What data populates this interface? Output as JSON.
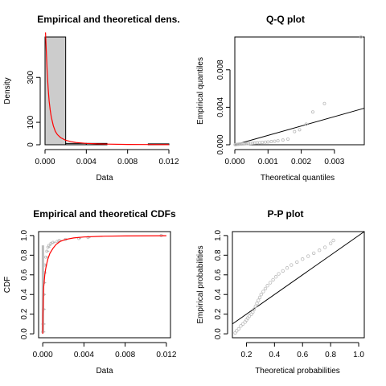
{
  "chart_data": [
    {
      "type": "histogram",
      "title": "Empirical and theoretical dens.",
      "xlabel": "Data",
      "ylabel": "Density",
      "xlim": [
        0,
        0.012
      ],
      "ylim": [
        0,
        480
      ],
      "x_ticks": [
        0.0,
        0.004,
        0.008,
        0.012
      ],
      "x_tick_labels": [
        "0.000",
        "0.004",
        "0.008",
        "0.012"
      ],
      "y_ticks": [
        0,
        100,
        300
      ],
      "y_tick_labels": [
        "0",
        "100",
        "300"
      ],
      "bins": [
        {
          "x0": 0.0,
          "x1": 0.002,
          "density": 480
        },
        {
          "x0": 0.002,
          "x1": 0.004,
          "density": 6
        },
        {
          "x0": 0.004,
          "x1": 0.006,
          "density": 6
        },
        {
          "x0": 0.006,
          "x1": 0.008,
          "density": 0
        },
        {
          "x0": 0.008,
          "x1": 0.01,
          "density": 0
        },
        {
          "x0": 0.01,
          "x1": 0.012,
          "density": 4
        }
      ],
      "theoretical_density_curve": {
        "color": "#ff0000",
        "x": [
          5e-05,
          0.0001,
          0.0002,
          0.0003,
          0.0004,
          0.0005,
          0.0006,
          0.0008,
          0.001,
          0.0012,
          0.0015,
          0.002,
          0.0025,
          0.003,
          0.004,
          0.005,
          0.006,
          0.008,
          0.01,
          0.012
        ],
        "y": [
          500,
          440,
          330,
          250,
          195,
          155,
          125,
          85,
          60,
          45,
          32,
          20,
          14,
          10,
          6,
          4,
          3,
          1.5,
          1,
          0.5
        ]
      },
      "bar_color": "#cccccc"
    },
    {
      "type": "scatter",
      "title": "Q-Q plot",
      "xlabel": "Theoretical quantiles",
      "ylabel": "Empirical quantiles",
      "xlim": [
        0,
        0.0039
      ],
      "ylim": [
        0,
        0.0115
      ],
      "x_ticks": [
        0.0,
        0.001,
        0.002,
        0.003
      ],
      "x_tick_labels": [
        "0.000",
        "0.001",
        "0.002",
        "0.003"
      ],
      "y_ticks": [
        0.0,
        0.004,
        0.008
      ],
      "y_tick_labels": [
        "0.000",
        "0.004",
        "0.008"
      ],
      "points": [
        [
          1e-05,
          1e-05
        ],
        [
          3e-05,
          2e-05
        ],
        [
          5e-05,
          3e-05
        ],
        [
          8e-05,
          4e-05
        ],
        [
          0.0001,
          5e-05
        ],
        [
          0.00013,
          6e-05
        ],
        [
          0.00016,
          7e-05
        ],
        [
          0.0002,
          8e-05
        ],
        [
          0.00024,
          9e-05
        ],
        [
          0.00028,
          0.0001
        ],
        [
          0.00032,
          0.00011
        ],
        [
          0.00037,
          0.00012
        ],
        [
          0.00042,
          0.00013
        ],
        [
          0.00048,
          0.00015
        ],
        [
          0.00054,
          0.00017
        ],
        [
          0.0006,
          0.00019
        ],
        [
          0.00067,
          0.00021
        ],
        [
          0.00075,
          0.00023
        ],
        [
          0.00083,
          0.00025
        ],
        [
          0.00092,
          0.00028
        ],
        [
          0.001,
          0.0003
        ],
        [
          0.0011,
          0.00034
        ],
        [
          0.0012,
          0.00038
        ],
        [
          0.0013,
          0.00043
        ],
        [
          0.00145,
          0.0005
        ],
        [
          0.0016,
          0.0006
        ],
        [
          0.0018,
          0.0014
        ],
        [
          0.00195,
          0.0016
        ],
        [
          0.00215,
          0.0022
        ],
        [
          0.00235,
          0.0035
        ],
        [
          0.0027,
          0.0044
        ],
        [
          0.0038,
          0.0115
        ]
      ],
      "reference_line": {
        "x": [
          0,
          0.0039
        ],
        "y": [
          0,
          0.0039
        ]
      },
      "point_color": "#bbbbbb"
    },
    {
      "type": "line",
      "title": "Empirical and theoretical CDFs",
      "xlabel": "Data",
      "ylabel": "CDF",
      "xlim": [
        -0.0004,
        0.0124
      ],
      "ylim": [
        -0.04,
        1.04
      ],
      "x_ticks": [
        0.0,
        0.004,
        0.008,
        0.012
      ],
      "x_tick_labels": [
        "0.000",
        "0.004",
        "0.008",
        "0.012"
      ],
      "y_ticks": [
        0.0,
        0.2,
        0.4,
        0.6,
        0.8,
        1.0
      ],
      "y_tick_labels": [
        "0.0",
        "0.2",
        "0.4",
        "0.6",
        "0.8",
        "1.0"
      ],
      "empirical_cdf": {
        "color": "#bbbbbb",
        "x": [
          1e-05,
          3e-05,
          5e-05,
          8e-05,
          0.0001,
          0.00015,
          0.0002,
          0.0003,
          0.0004,
          0.0005,
          0.0006,
          0.0008,
          0.001,
          0.0014,
          0.0016,
          0.0022,
          0.0035,
          0.0044,
          0.0115
        ],
        "y": [
          0.02,
          0.1,
          0.25,
          0.4,
          0.52,
          0.62,
          0.7,
          0.78,
          0.84,
          0.88,
          0.9,
          0.92,
          0.93,
          0.94,
          0.95,
          0.96,
          0.97,
          0.98,
          1.0
        ]
      },
      "theoretical_cdf": {
        "color": "#ff0000",
        "x": [
          0.0,
          2e-05,
          5e-05,
          0.0001,
          0.0002,
          0.0003,
          0.0004,
          0.0005,
          0.0007,
          0.001,
          0.0013,
          0.0017,
          0.0022,
          0.003,
          0.004,
          0.006,
          0.008,
          0.012
        ],
        "y": [
          0.0,
          0.2,
          0.35,
          0.48,
          0.6,
          0.67,
          0.72,
          0.76,
          0.82,
          0.87,
          0.91,
          0.94,
          0.96,
          0.975,
          0.985,
          0.993,
          0.996,
          0.998
        ]
      }
    },
    {
      "type": "scatter",
      "title": "P-P plot",
      "xlabel": "Theoretical probabilities",
      "ylabel": "Empirical probabilities",
      "xlim": [
        0.1,
        1.04
      ],
      "ylim": [
        -0.04,
        1.04
      ],
      "x_ticks": [
        0.2,
        0.4,
        0.6,
        0.8,
        1.0
      ],
      "x_tick_labels": [
        "0.2",
        "0.4",
        "0.6",
        "0.8",
        "1.0"
      ],
      "y_ticks": [
        0.0,
        0.2,
        0.4,
        0.6,
        0.8,
        1.0
      ],
      "y_tick_labels": [
        "0.0",
        "0.2",
        "0.4",
        "0.6",
        "0.8",
        "1.0"
      ],
      "points": [
        [
          0.12,
          0.01
        ],
        [
          0.13,
          0.03
        ],
        [
          0.145,
          0.05
        ],
        [
          0.16,
          0.08
        ],
        [
          0.175,
          0.1
        ],
        [
          0.19,
          0.12
        ],
        [
          0.2,
          0.14
        ],
        [
          0.21,
          0.16
        ],
        [
          0.22,
          0.18
        ],
        [
          0.235,
          0.2
        ],
        [
          0.245,
          0.22
        ],
        [
          0.255,
          0.25
        ],
        [
          0.265,
          0.28
        ],
        [
          0.275,
          0.31
        ],
        [
          0.285,
          0.34
        ],
        [
          0.295,
          0.37
        ],
        [
          0.305,
          0.4
        ],
        [
          0.32,
          0.43
        ],
        [
          0.335,
          0.46
        ],
        [
          0.35,
          0.49
        ],
        [
          0.37,
          0.52
        ],
        [
          0.39,
          0.55
        ],
        [
          0.41,
          0.58
        ],
        [
          0.43,
          0.61
        ],
        [
          0.46,
          0.64
        ],
        [
          0.49,
          0.67
        ],
        [
          0.52,
          0.7
        ],
        [
          0.56,
          0.73
        ],
        [
          0.6,
          0.76
        ],
        [
          0.64,
          0.79
        ],
        [
          0.68,
          0.82
        ],
        [
          0.72,
          0.85
        ],
        [
          0.76,
          0.88
        ],
        [
          0.8,
          0.92
        ],
        [
          0.82,
          0.95
        ]
      ],
      "reference_line": {
        "x": [
          0.1,
          1.04
        ],
        "y": [
          0.1,
          1.04
        ]
      },
      "point_color": "#bbbbbb"
    }
  ]
}
